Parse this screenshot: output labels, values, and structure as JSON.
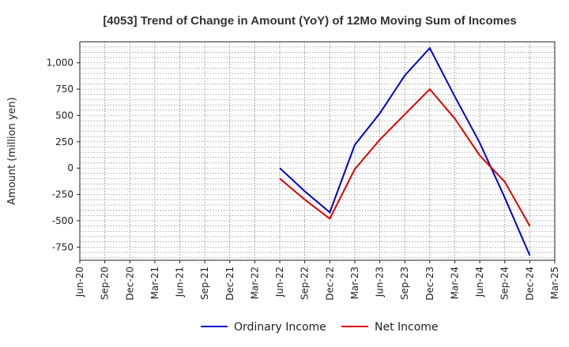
{
  "chart_data": {
    "type": "line",
    "title": "[4053]  Trend of Change in Amount (YoY) of 12Mo Moving Sum of Incomes",
    "ylabel": "Amount (million yen)",
    "xlabel": "",
    "ylim": [
      -875,
      1200
    ],
    "yticks": [
      1000,
      750,
      500,
      250,
      0,
      -250,
      -500,
      -750
    ],
    "ytick_labels": [
      "1,000",
      "750",
      "500",
      "250",
      "0",
      "-250",
      "-500",
      "-750"
    ],
    "categories": [
      "Jun-20",
      "Sep-20",
      "Dec-20",
      "Mar-21",
      "Jun-21",
      "Sep-21",
      "Dec-21",
      "Mar-22",
      "Jun-22",
      "Sep-22",
      "Dec-22",
      "Mar-23",
      "Jun-23",
      "Sep-23",
      "Dec-23",
      "Mar-24",
      "Jun-24",
      "Sep-24",
      "Dec-24",
      "Mar-25"
    ],
    "grid": true,
    "legend_position": "bottom",
    "series": [
      {
        "name": "Ordinary Income",
        "color": "#0000cc",
        "values": [
          null,
          null,
          null,
          null,
          null,
          null,
          null,
          null,
          0,
          -220,
          -420,
          220,
          520,
          880,
          1140,
          680,
          240,
          -280,
          -830,
          null
        ]
      },
      {
        "name": "Net Income",
        "color": "#dd0000",
        "values": [
          null,
          null,
          null,
          null,
          null,
          null,
          null,
          null,
          -100,
          -300,
          -480,
          -10,
          270,
          510,
          750,
          470,
          120,
          -130,
          -550,
          null
        ]
      }
    ]
  }
}
